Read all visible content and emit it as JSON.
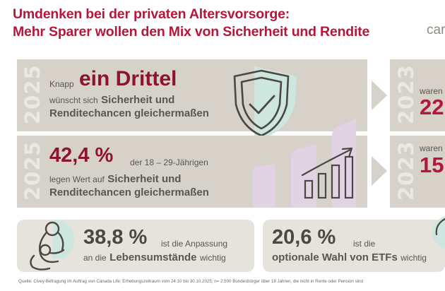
{
  "header": {
    "title_line1": "Umdenken bei der privaten Altersvorsorge:",
    "title_line2": "Mehr Sparer wollen den Mix von Sicherheit und Rendite",
    "brand_fragment": "car"
  },
  "panel1": {
    "year": "2025",
    "prefix": "Knapp",
    "highlight": "ein Drittel",
    "line2_normal": "wünscht sich",
    "line2_bold": "Sicherheit und",
    "line3_bold": "Renditechancen gleichermaßen"
  },
  "panel2": {
    "year": "2025",
    "percent": "42,4 %",
    "age_text": "der 18 – 29-Jährigen",
    "line2_normal": "legen Wert auf",
    "line2_bold": "Sicherheit und",
    "line3_bold": "Renditechancen gleichermaßen"
  },
  "compare1": {
    "year": "2023",
    "text": "waren",
    "value": "22"
  },
  "compare2": {
    "year": "2023",
    "text": "waren",
    "value": "15"
  },
  "card1": {
    "percent": "38,8 %",
    "line1": "ist die Anpassung",
    "line2_prefix": "an die",
    "line2_bold": "Lebensumstände",
    "line2_suffix": "wichtig"
  },
  "card2": {
    "percent": "20,6 %",
    "line1": "ist die",
    "line2_bold": "optionale Wahl von ETFs",
    "line2_suffix": "wichtig"
  },
  "source": "Quelle: Civey-Befragung im Auftrag von Canada Life; Erhebungszeitraum vom 24.10 bis 30.10.2025; n= 2.500 Bundesbürger über 18 Jahren, die nicht in Rente oder Pension sind",
  "icons": [
    "shield-check-icon",
    "growth-chart-icon",
    "parent-child-icon",
    "leaf-icon",
    "chevron-right-icon"
  ],
  "colors": {
    "title_red": "#b5173b",
    "dark_red": "#8c1431",
    "panel_grey": "#d6d1c9",
    "card_grey": "#e6e2dc",
    "mint": "#cde6df",
    "lilac": "#e2d3e4"
  }
}
